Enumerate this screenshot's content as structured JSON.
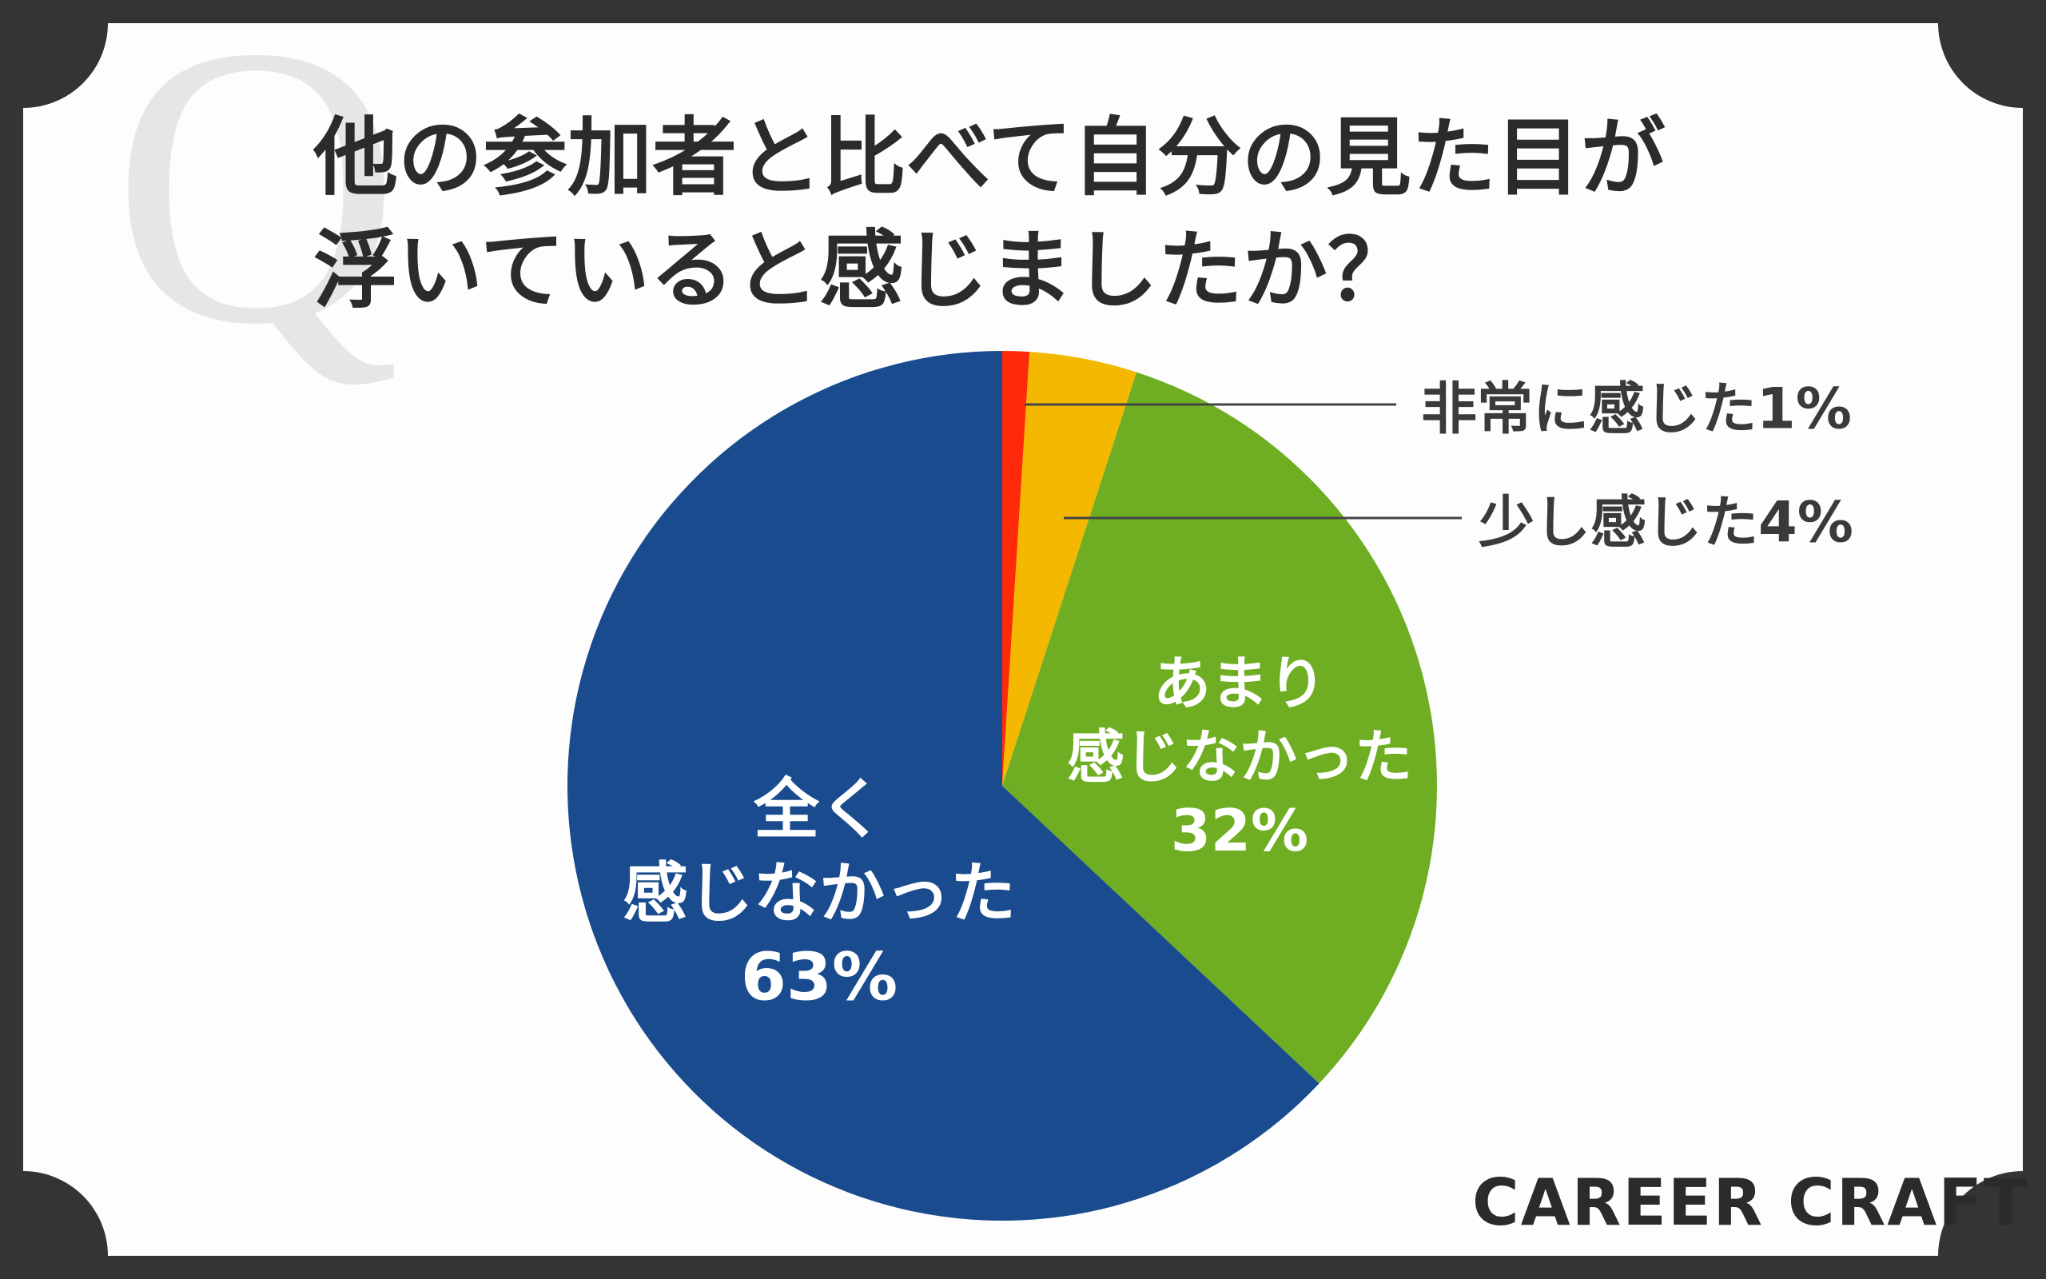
{
  "chart_data": {
    "type": "pie",
    "title": "他の参加者と比べて自分の見た目が\n浮いていると感じましたか？",
    "watermark": "Q",
    "categories": [
      "非常に感じた",
      "少し感じた",
      "あまり\n感じなかった",
      "全く\n感じなかった"
    ],
    "values": [
      1,
      4,
      32,
      63
    ],
    "value_labels": [
      "1%",
      "4%",
      "32%",
      "63%"
    ],
    "colors": [
      "#ff2a0a",
      "#f5b800",
      "#6fae22",
      "#194b8e"
    ],
    "brand": "CAREER CRAFT"
  }
}
